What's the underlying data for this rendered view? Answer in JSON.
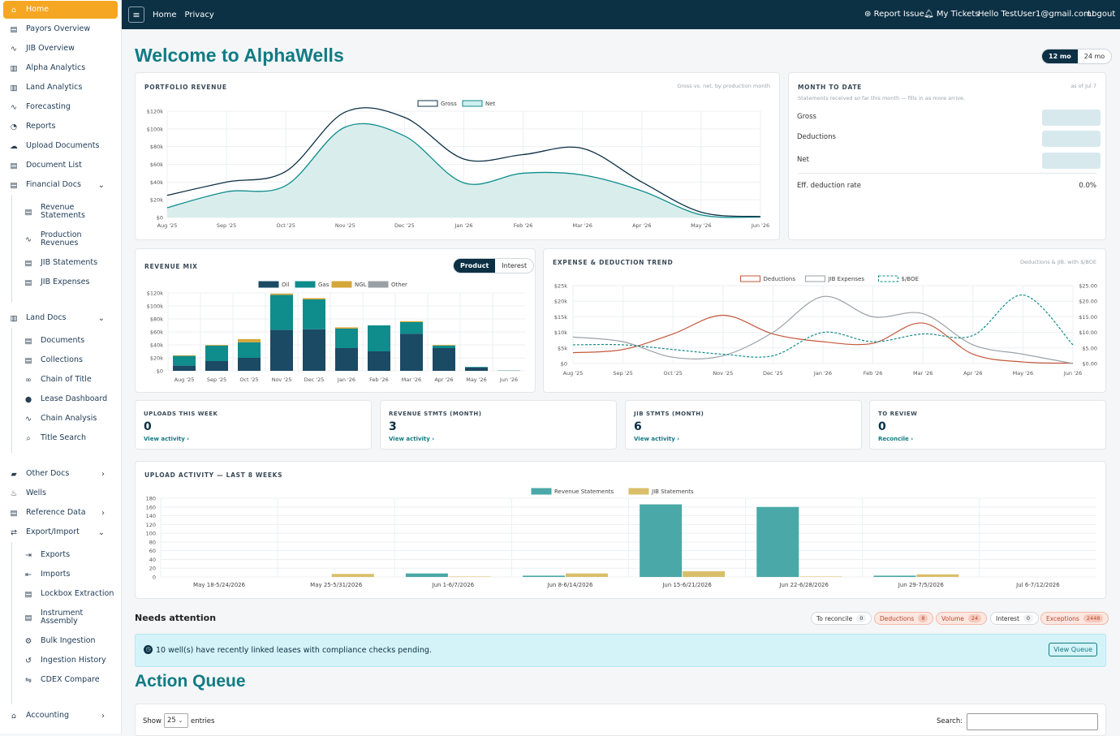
{
  "sidebar": {
    "items": [
      {
        "label": "Home",
        "icon": "home-icon",
        "active": true
      },
      {
        "label": "Payors Overview",
        "icon": "document-icon"
      },
      {
        "label": "JIB Overview",
        "icon": "line-chart-icon"
      },
      {
        "label": "Alpha Analytics",
        "icon": "bar-chart-icon"
      },
      {
        "label": "Land Analytics",
        "icon": "bar-chart-icon"
      },
      {
        "label": "Forecasting",
        "icon": "line-chart-icon"
      },
      {
        "label": "Reports",
        "icon": "pie-chart-icon"
      },
      {
        "label": "Upload Documents",
        "icon": "cloud-upload-icon"
      },
      {
        "label": "Document List",
        "icon": "document-icon"
      },
      {
        "label": "Financial Docs",
        "icon": "document-icon",
        "expanded": true
      },
      {
        "label": "Revenue Statements",
        "icon": "document-icon"
      },
      {
        "label": "Production Revenues",
        "icon": "line-chart-icon"
      },
      {
        "label": "JIB Statements",
        "icon": "document-icon"
      },
      {
        "label": "JIB Expenses",
        "icon": "document-icon"
      },
      {
        "label": "Land Docs",
        "icon": "bar-chart-icon",
        "expanded": true
      },
      {
        "label": "Documents",
        "icon": "document-icon"
      },
      {
        "label": "Collections",
        "icon": "document-icon"
      },
      {
        "label": "Chain of Title",
        "icon": "link-icon"
      },
      {
        "label": "Lease Dashboard",
        "icon": "circle-icon"
      },
      {
        "label": "Chain Analysis",
        "icon": "line-chart-icon"
      },
      {
        "label": "Title Search",
        "icon": "search-icon"
      },
      {
        "label": "Other Docs",
        "icon": "folder-icon",
        "expanded": false
      },
      {
        "label": "Wells",
        "icon": "well-icon"
      },
      {
        "label": "Reference Data",
        "icon": "document-icon",
        "expanded": false
      },
      {
        "label": "Export/Import",
        "icon": "exchange-icon",
        "expanded": true
      },
      {
        "label": "Exports",
        "icon": "export-icon"
      },
      {
        "label": "Imports",
        "icon": "import-icon"
      },
      {
        "label": "Lockbox Extraction",
        "icon": "document-icon"
      },
      {
        "label": "Instrument Assembly",
        "icon": "document-icon"
      },
      {
        "label": "Bulk Ingestion",
        "icon": "gears-icon"
      },
      {
        "label": "Ingestion History",
        "icon": "history-icon"
      },
      {
        "label": "CDEX Compare",
        "icon": "compare-icon"
      },
      {
        "label": "Accounting",
        "icon": "bank-icon",
        "expanded": false
      }
    ]
  },
  "topbar": {
    "nav": [
      "Home",
      "Privacy"
    ],
    "report_issue": "Report Issue",
    "my_tickets": "My Tickets",
    "greeting": "Hello TestUser1@gmail.com!",
    "logout": "Logout"
  },
  "page": {
    "title": "Welcome to AlphaWells",
    "range_options": [
      "12 mo",
      "24 mo"
    ],
    "range_selected": "12 mo"
  },
  "portfolio_revenue": {
    "title": "PORTFOLIO REVENUE",
    "subtitle": "Gross vs. net, by production month"
  },
  "month_to_date": {
    "title": "MONTH TO DATE",
    "as_of": "as of Jul 7",
    "note": "Statements received so far this month — fills in as more arrive.",
    "rows": [
      "Gross",
      "Deductions",
      "Net"
    ],
    "deduction_rate_label": "Eff. deduction rate",
    "deduction_rate_value": "0.0%"
  },
  "revenue_mix": {
    "title": "REVENUE MIX",
    "tabs": [
      "Product",
      "Interest"
    ],
    "active_tab": "Product"
  },
  "expense_trend": {
    "title": "EXPENSE & DEDUCTION TREND",
    "subtitle": "Deductions & JIB, with $/BOE"
  },
  "stats": [
    {
      "label": "UPLOADS THIS WEEK",
      "value": "0",
      "link": "View activity ›"
    },
    {
      "label": "REVENUE STMTS (MONTH)",
      "value": "3",
      "link": "View activity ›"
    },
    {
      "label": "JIB STMTS (MONTH)",
      "value": "6",
      "link": "View activity ›"
    },
    {
      "label": "TO REVIEW",
      "value": "0",
      "link": "Reconcile ›"
    }
  ],
  "upload_activity": {
    "title": "UPLOAD ACTIVITY — LAST 8 WEEKS"
  },
  "needs_attention": {
    "title": "Needs attention",
    "pills": [
      {
        "label": "To reconcile",
        "count": "0"
      },
      {
        "label": "Deductions",
        "count": "8"
      },
      {
        "label": "Volume",
        "count": "24"
      },
      {
        "label": "Interest",
        "count": "0"
      },
      {
        "label": "Exceptions",
        "count": "2448"
      }
    ],
    "alert": "10 well(s) have recently linked leases with compliance checks pending.",
    "alert_button": "View Queue"
  },
  "action_queue": {
    "title": "Action Queue",
    "show_label": "Show",
    "entries_value": "25",
    "entries_label": "entries",
    "search_label": "Search:"
  },
  "colors": {
    "accent": "#117b84",
    "nav": "#0c3044",
    "active": "#f5a623",
    "oil": "#1b4a64",
    "gas": "#0f8c8c",
    "ngl": "#d4a73a",
    "other": "#9aa1a6"
  },
  "chart_data": [
    {
      "type": "area",
      "title": "PORTFOLIO REVENUE",
      "x": [
        "Aug '25",
        "Sep '25",
        "Oct '25",
        "Nov '25",
        "Dec '25",
        "Jan '26",
        "Feb '26",
        "Mar '26",
        "Apr '26",
        "May '26",
        "Jun '26"
      ],
      "ylim": [
        0,
        120000
      ],
      "yticks": [
        "$0",
        "$20k",
        "$40k",
        "$60k",
        "$80k",
        "$100k",
        "$120k"
      ],
      "legend": "top-center",
      "series": [
        {
          "name": "Gross",
          "values": [
            25000,
            40000,
            52000,
            119000,
            113000,
            66000,
            71000,
            78000,
            40000,
            6000,
            1000
          ]
        },
        {
          "name": "Net",
          "values": [
            11000,
            29000,
            36000,
            102000,
            92000,
            39000,
            50000,
            48000,
            30000,
            3000,
            500
          ]
        }
      ]
    },
    {
      "type": "bar",
      "title": "REVENUE MIX",
      "stacked": true,
      "categories": [
        "Aug '25",
        "Sep '25",
        "Oct '25",
        "Nov '25",
        "Dec '25",
        "Jan '26",
        "Feb '26",
        "Mar '26",
        "Apr '26",
        "May '26",
        "Jun '26"
      ],
      "ylim": [
        0,
        120000
      ],
      "yticks": [
        "$0",
        "$20k",
        "$40k",
        "$60k",
        "$80k",
        "$100k",
        "$120k"
      ],
      "legend": "top-center",
      "series": [
        {
          "name": "Oil",
          "values": [
            8000,
            15000,
            20000,
            63000,
            64000,
            35000,
            30000,
            57000,
            35000,
            5000,
            300
          ]
        },
        {
          "name": "Gas",
          "values": [
            15000,
            24000,
            24000,
            54000,
            46000,
            30000,
            40000,
            18000,
            4000,
            1000,
            200
          ]
        },
        {
          "name": "NGL",
          "values": [
            1000,
            1000,
            5000,
            2000,
            2000,
            2000,
            0,
            1500,
            1000,
            0,
            0
          ]
        },
        {
          "name": "Other",
          "values": [
            0,
            0,
            0,
            0,
            0,
            0,
            0,
            0,
            0,
            0,
            0
          ]
        }
      ]
    },
    {
      "type": "line",
      "title": "EXPENSE & DEDUCTION TREND",
      "x": [
        "Aug '25",
        "Sep '25",
        "Oct '25",
        "Nov '25",
        "Dec '25",
        "Jan '26",
        "Feb '26",
        "Mar '26",
        "Apr '26",
        "May '26",
        "Jun '26"
      ],
      "ylim": [
        0,
        25000
      ],
      "yticks": [
        "$0",
        "$5k",
        "$10k",
        "$15k",
        "$20k",
        "$25k"
      ],
      "y2lim": [
        0,
        25
      ],
      "y2ticks": [
        "$0.00",
        "$5.00",
        "$10.00",
        "$15.00",
        "$20.00",
        "$25.00"
      ],
      "legend": "top-center",
      "series": [
        {
          "name": "Deductions",
          "axis": "left",
          "values": [
            3500,
            4500,
            9500,
            15500,
            9500,
            7000,
            6500,
            13000,
            3000,
            500,
            100
          ]
        },
        {
          "name": "JIB Expenses",
          "axis": "left",
          "values": [
            8500,
            7000,
            2000,
            2500,
            10000,
            21500,
            15000,
            16000,
            6000,
            3000,
            0
          ]
        },
        {
          "name": "$/BOE",
          "axis": "right",
          "dashed": true,
          "values": [
            6,
            6,
            4.5,
            3,
            2.5,
            10,
            7,
            9.5,
            9,
            22,
            6
          ]
        }
      ]
    },
    {
      "type": "bar",
      "title": "UPLOAD ACTIVITY — LAST 8 WEEKS",
      "categories": [
        "May 18-5/24/2026",
        "May 25-5/31/2026",
        "Jun 1-6/7/2026",
        "Jun 8-6/14/2026",
        "Jun 15-6/21/2026",
        "Jun 22-6/28/2026",
        "Jun 29-7/5/2026",
        "Jul 6-7/12/2026"
      ],
      "ylim": [
        0,
        180
      ],
      "yticks": [
        "0",
        "20",
        "40",
        "60",
        "80",
        "100",
        "120",
        "140",
        "160",
        "180"
      ],
      "legend": "top-center",
      "series": [
        {
          "name": "Revenue Statements",
          "values": [
            0,
            0,
            8,
            3,
            166,
            160,
            3,
            0
          ]
        },
        {
          "name": "JIB Statements",
          "values": [
            0,
            7,
            1,
            8,
            13,
            1,
            6,
            0
          ]
        }
      ]
    }
  ]
}
